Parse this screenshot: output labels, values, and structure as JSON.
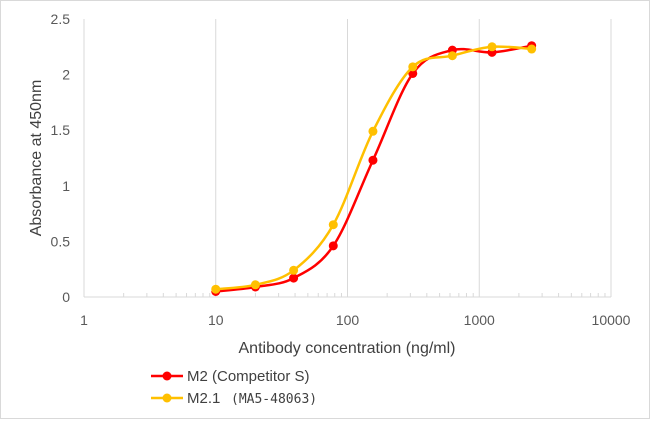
{
  "chart_data": {
    "type": "line",
    "xscale": "log",
    "xlim": [
      1,
      10000
    ],
    "ylim": [
      0,
      2.5
    ],
    "x_ticks": [
      "1",
      "10",
      "100",
      "1000",
      "10000"
    ],
    "y_ticks": [
      "0",
      "0.5",
      "1",
      "1.5",
      "2",
      "2.5"
    ],
    "xlabel": "Antibody concentration (ng/ml)",
    "ylabel": "Absorbance at 450nm",
    "grid": "vertical major",
    "legend_position": "bottom-left",
    "series": [
      {
        "name": "M2 (Competitor S)",
        "color": "#ff0000",
        "x": [
          10,
          20,
          39,
          78,
          156,
          313,
          625,
          1250,
          2500
        ],
        "y": [
          0.05,
          0.09,
          0.17,
          0.46,
          1.23,
          2.01,
          2.22,
          2.2,
          2.26
        ]
      },
      {
        "name": "M2.1",
        "name_extra": "(MA5-48063)",
        "color": "#ffc000",
        "x": [
          10,
          20,
          39,
          78,
          156,
          313,
          625,
          1250,
          2500
        ],
        "y": [
          0.07,
          0.11,
          0.24,
          0.65,
          1.49,
          2.07,
          2.17,
          2.25,
          2.23
        ]
      }
    ]
  }
}
